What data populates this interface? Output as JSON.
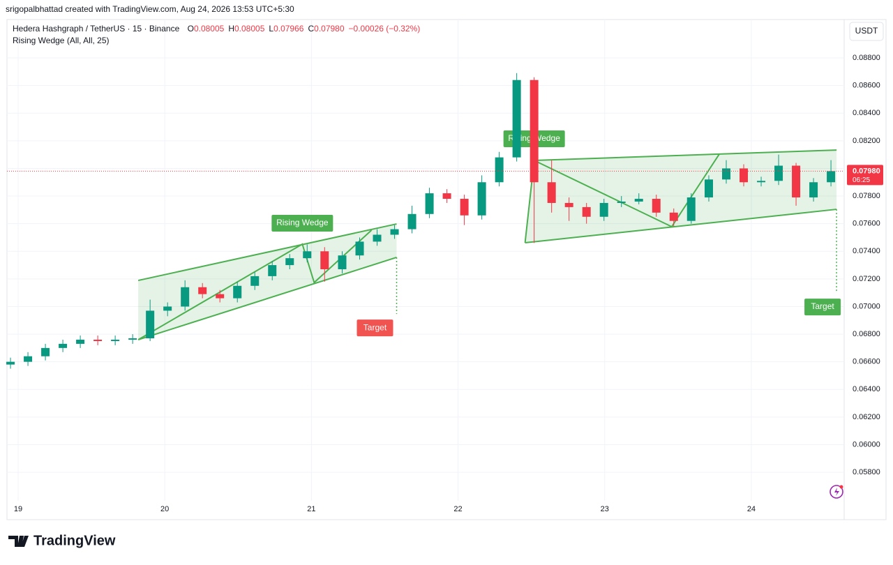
{
  "header": {
    "credit": "srigopalbhattad created with TradingView.com, Aug 24, 2026 13:53 UTC+5:30",
    "symbol": "Hedera Hashgraph / TetherUS · 15 · Binance",
    "ohlc": [
      {
        "key": "O",
        "value": "0.08005"
      },
      {
        "key": "H",
        "value": "0.08005"
      },
      {
        "key": "L",
        "value": "0.07966"
      },
      {
        "key": "C",
        "value": "0.07980"
      }
    ],
    "change": "−0.00026 (−0.32%)",
    "indicator": "Rising Wedge (All, All, 25)",
    "currency": "USDT",
    "brand": "TradingView"
  },
  "chart_data": {
    "type": "candlestick",
    "up_color": "#089981",
    "down_color": "#f23645",
    "xlim": [
      18.924,
      24.633
    ],
    "xticks": [
      19,
      20,
      21,
      22,
      23,
      24
    ],
    "ylim": [
      0.05457,
      0.09078
    ],
    "yticks": [
      {
        "value": 0.058,
        "label": "0.05800"
      },
      {
        "value": 0.06,
        "label": "0.06000"
      },
      {
        "value": 0.062,
        "label": "0.06200"
      },
      {
        "value": 0.064,
        "label": "0.06400"
      },
      {
        "value": 0.066,
        "label": "0.06600"
      },
      {
        "value": 0.068,
        "label": "0.06800"
      },
      {
        "value": 0.07,
        "label": "0.07000"
      },
      {
        "value": 0.072,
        "label": "0.07200"
      },
      {
        "value": 0.074,
        "label": "0.07400"
      },
      {
        "value": 0.076,
        "label": "0.07600"
      },
      {
        "value": 0.078,
        "label": "0.07800"
      },
      {
        "value": 0.08,
        "label": "0.08000"
      },
      {
        "value": 0.082,
        "label": "0.08200"
      },
      {
        "value": 0.084,
        "label": "0.08400"
      },
      {
        "value": 0.086,
        "label": "0.08600"
      },
      {
        "value": 0.088,
        "label": "0.08800"
      }
    ],
    "grid": true,
    "candles": {
      "x": [
        18.948,
        19.067,
        19.186,
        19.305,
        19.424,
        19.543,
        19.662,
        19.781,
        19.9,
        20.019,
        20.138,
        20.257,
        20.376,
        20.495,
        20.614,
        20.733,
        20.852,
        20.971,
        21.09,
        21.21,
        21.329,
        21.448,
        21.567,
        21.686,
        21.805,
        21.924,
        22.043,
        22.162,
        22.281,
        22.4,
        22.519,
        22.638,
        22.757,
        22.876,
        22.995,
        23.114,
        23.233,
        23.352,
        23.471,
        23.59,
        23.71,
        23.829,
        23.948,
        24.067,
        24.186,
        24.305,
        24.424,
        24.543
      ],
      "open": [
        0.0658,
        0.066,
        0.0664,
        0.067,
        0.0673,
        0.0676,
        0.0675,
        0.0676,
        0.0677,
        0.0697,
        0.07,
        0.0714,
        0.0709,
        0.0706,
        0.0715,
        0.0722,
        0.073,
        0.0735,
        0.074,
        0.0727,
        0.0737,
        0.0747,
        0.0752,
        0.0756,
        0.0767,
        0.0782,
        0.0778,
        0.0766,
        0.079,
        0.0808,
        0.0864,
        0.079,
        0.0775,
        0.0772,
        0.0765,
        0.0775,
        0.0776,
        0.0778,
        0.0768,
        0.0762,
        0.0779,
        0.0792,
        0.08,
        0.079,
        0.0791,
        0.0802,
        0.0779,
        0.079
      ],
      "high": [
        0.0663,
        0.0667,
        0.0673,
        0.0676,
        0.0679,
        0.0679,
        0.0679,
        0.068,
        0.0705,
        0.0703,
        0.0719,
        0.0717,
        0.0712,
        0.0718,
        0.0725,
        0.0733,
        0.0738,
        0.0745,
        0.0743,
        0.074,
        0.075,
        0.0756,
        0.0759,
        0.0773,
        0.0786,
        0.0785,
        0.0781,
        0.0795,
        0.0812,
        0.0869,
        0.0866,
        0.0806,
        0.0779,
        0.0775,
        0.0778,
        0.078,
        0.0782,
        0.0781,
        0.0771,
        0.0782,
        0.0795,
        0.0806,
        0.0803,
        0.0794,
        0.081,
        0.0804,
        0.0793,
        0.0806
      ],
      "low": [
        0.0655,
        0.0657,
        0.0661,
        0.0667,
        0.067,
        0.0672,
        0.0672,
        0.0673,
        0.0675,
        0.0693,
        0.0697,
        0.0706,
        0.0703,
        0.0703,
        0.0712,
        0.0719,
        0.0727,
        0.0732,
        0.0718,
        0.0724,
        0.0734,
        0.0744,
        0.0749,
        0.0753,
        0.0764,
        0.0775,
        0.0759,
        0.0763,
        0.0787,
        0.0805,
        0.0746,
        0.0768,
        0.0762,
        0.076,
        0.0762,
        0.0772,
        0.0774,
        0.0765,
        0.0758,
        0.076,
        0.0776,
        0.0789,
        0.0787,
        0.0787,
        0.0788,
        0.0773,
        0.0776,
        0.0787
      ],
      "close": [
        0.066,
        0.0664,
        0.067,
        0.0673,
        0.0676,
        0.0675,
        0.0676,
        0.0677,
        0.0697,
        0.07,
        0.0714,
        0.0709,
        0.0706,
        0.0715,
        0.0722,
        0.073,
        0.0735,
        0.074,
        0.0727,
        0.0737,
        0.0747,
        0.0752,
        0.0756,
        0.0767,
        0.0782,
        0.0778,
        0.0766,
        0.079,
        0.0808,
        0.0864,
        0.079,
        0.0775,
        0.0772,
        0.0765,
        0.0775,
        0.0776,
        0.0778,
        0.0768,
        0.0762,
        0.0779,
        0.0792,
        0.08,
        0.079,
        0.0791,
        0.0802,
        0.0779,
        0.079,
        0.0798
      ]
    },
    "last_price": {
      "value": 0.0798,
      "label": "0.07980"
    },
    "countdown": "06:25",
    "wedges": [
      {
        "label": "Rising Wedge",
        "color": "#4caf50",
        "target_label": "Target",
        "target_color": "#f05350",
        "upper": {
          "x": [
            19.819,
            21.581
          ],
          "y": [
            0.07189,
            0.07598
          ]
        },
        "lower": {
          "x": [
            19.819,
            21.581
          ],
          "y": [
            0.0676,
            0.07356
          ]
        },
        "zigzag": {
          "x": [
            19.819,
            20.938,
            21.019,
            21.41
          ],
          "y": [
            0.0676,
            0.07452,
            0.07174,
            0.07553
          ]
        },
        "target": 0.06946
      },
      {
        "label": "Rising Wedge",
        "color": "#4caf50",
        "target_label": "Target",
        "target_color": "#4caf50",
        "upper": {
          "x": [
            22.519,
            24.581
          ],
          "y": [
            0.08058,
            0.08133
          ]
        },
        "lower": {
          "x": [
            22.457,
            24.581
          ],
          "y": [
            0.07462,
            0.07704
          ]
        },
        "zigzag": {
          "x": [
            22.457,
            22.519,
            23.457,
            23.781
          ],
          "y": [
            0.07462,
            0.08058,
            0.07578,
            0.08103
          ]
        },
        "target": 0.07098
      }
    ]
  }
}
